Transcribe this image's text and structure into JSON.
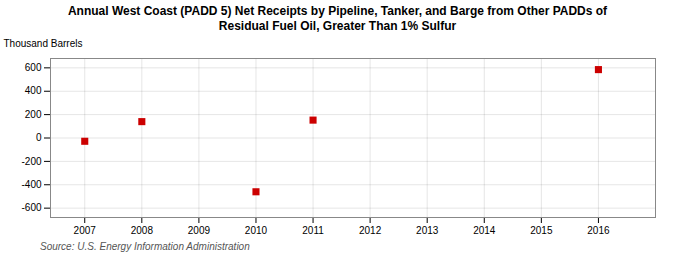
{
  "chart_data": {
    "type": "scatter",
    "title": "Annual West Coast (PADD 5) Net Receipts by Pipeline, Tanker, and Barge from Other PADDs of\nResidual Fuel Oil, Greater Than 1% Sulfur",
    "ylabel": "Thousand Barrels",
    "source": "Source: U.S. Energy Information Administration",
    "x": [
      2007,
      2008,
      2010,
      2011,
      2016
    ],
    "values": [
      -28,
      140,
      -460,
      153,
      585
    ],
    "color": "#cc0000",
    "marker": "square",
    "xlim": [
      2006.4,
      2017.0
    ],
    "xticks": [
      2007,
      2008,
      2009,
      2010,
      2011,
      2012,
      2013,
      2014,
      2015,
      2016
    ],
    "ylim": [
      -680,
      680
    ],
    "yticks": [
      -600,
      -400,
      -200,
      0,
      200,
      400,
      600
    ],
    "grid": true
  }
}
